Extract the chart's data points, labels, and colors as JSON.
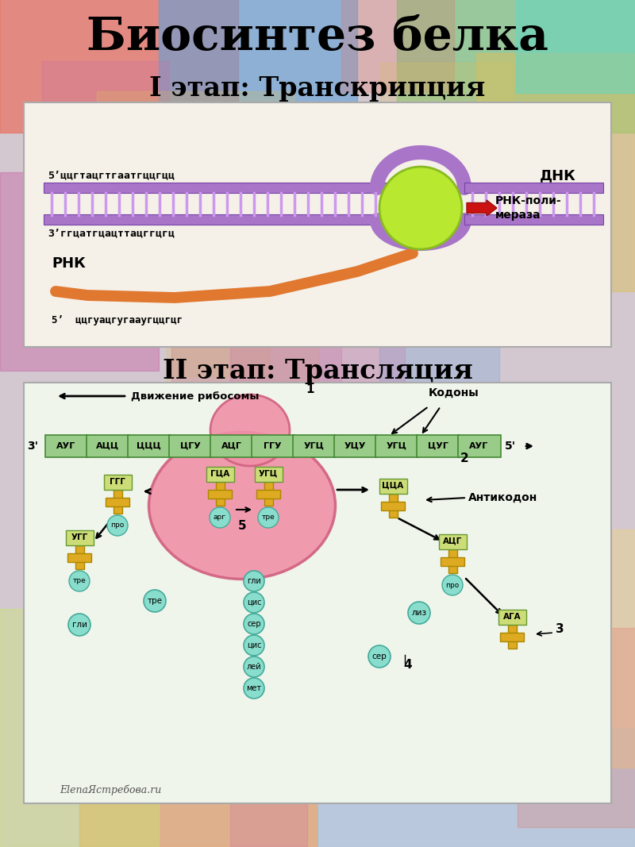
{
  "title": "Биосинтез белка",
  "subtitle1": "I этап: Транскрипция",
  "subtitle2": "II этап: Трансляция",
  "panel1_bg": "#f5f0e8",
  "panel2_bg": "#f0f5ec",
  "dna_top_seq": "5’ццгтацгтгаатгццгцц",
  "dna_bot_seq": "3’ггцатгцацттацггцгц",
  "rna_label": "РНК",
  "dnk_label": "ДНК",
  "pol_label": "РНК-поли-\nмераза",
  "rna_seq_label": "5’  ццгуацгугааугццгцг",
  "ribosome_label": "Движение рибосомы",
  "codons_label": "Кодоны",
  "anticodon_label": "Антикодон",
  "mRNA_codons": [
    "АУГ",
    "АЦЦ",
    "ЦЦЦ",
    "ЦГУ",
    "АЦГ",
    "ГГУ",
    "УГЦ",
    "УЦУ",
    "УГЦ",
    "ЦУГ",
    "АУГ"
  ],
  "inside_codons": [
    "ГЦА",
    "УГЦ"
  ],
  "inside_aa": [
    "арг",
    "тре"
  ],
  "chain_labels": [
    "гли",
    "цис",
    "сер",
    "цис",
    "лей",
    "мет"
  ],
  "watermark": "ElenaЯстребова.ru",
  "title_fontsize": 42,
  "subtitle_fontsize": 24
}
